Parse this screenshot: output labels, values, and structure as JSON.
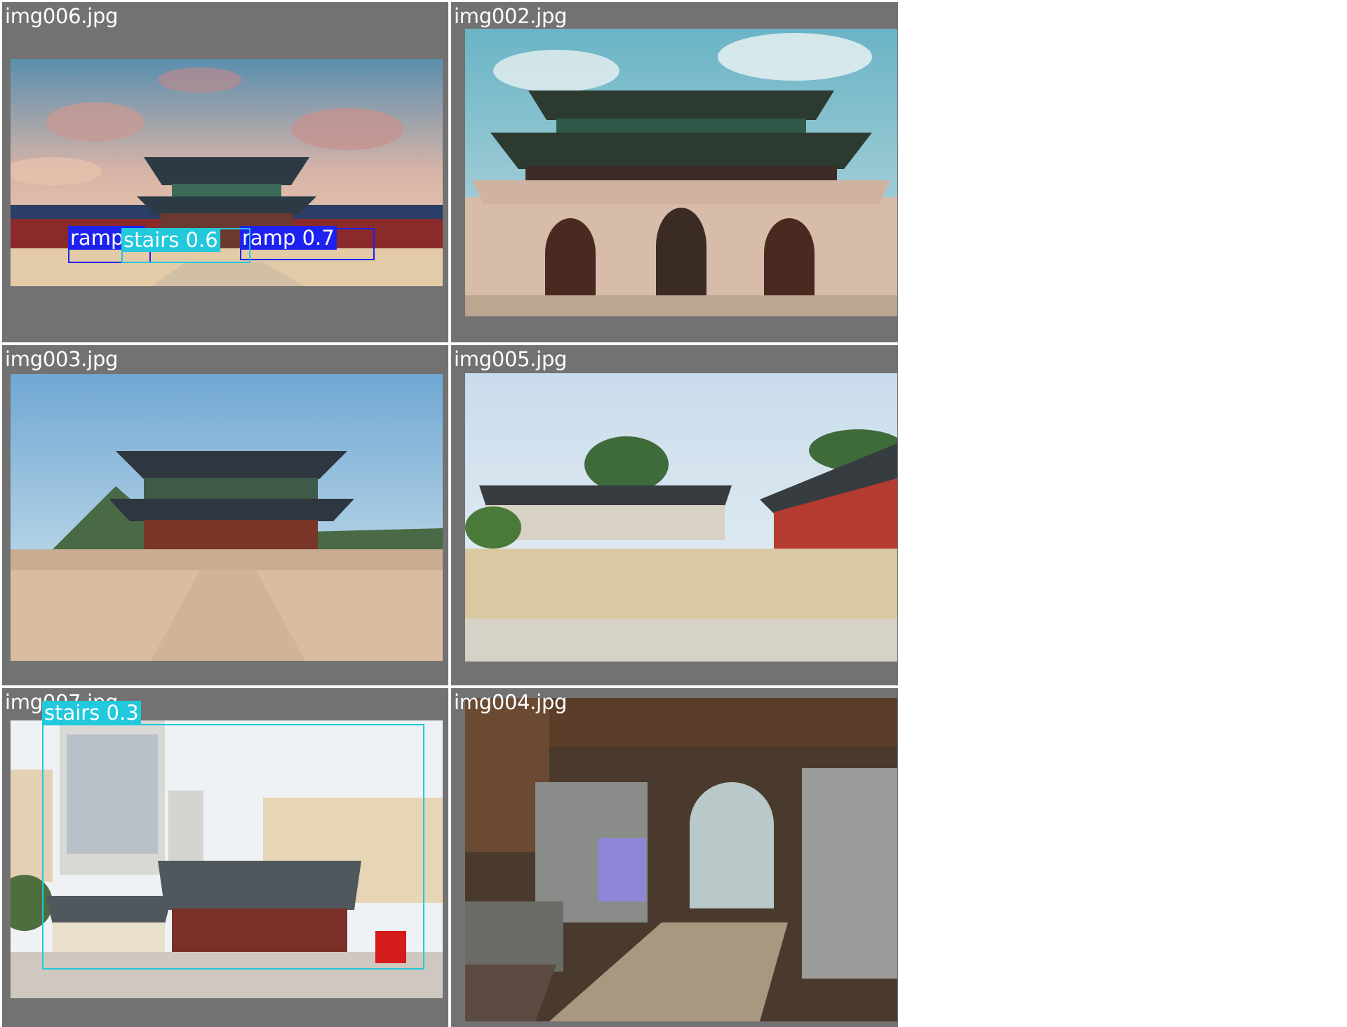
{
  "tiles": [
    {
      "filename": "img006.jpg",
      "detections": [
        {
          "label": "ramp 0",
          "class": "ramp"
        },
        {
          "label": "stairs 0.6",
          "class": "stairs"
        },
        {
          "label": "ramp 0.7",
          "class": "ramp"
        }
      ]
    },
    {
      "filename": "img002.jpg",
      "detections": []
    },
    {
      "filename": "img003.jpg",
      "detections": []
    },
    {
      "filename": "img005.jpg",
      "detections": []
    },
    {
      "filename": "img007.jpg",
      "detections": [
        {
          "label": "stairs 0.3",
          "class": "stairs"
        }
      ]
    },
    {
      "filename": "img004.jpg",
      "detections": []
    }
  ],
  "colors": {
    "tile_background": "#727272",
    "ramp": "#1e22f0",
    "stairs": "#22c8dc",
    "filename_text": "#ffffff"
  }
}
